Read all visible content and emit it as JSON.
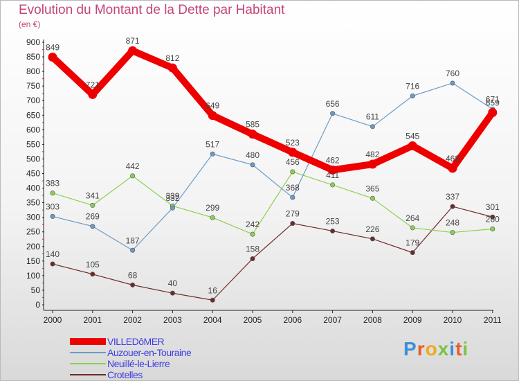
{
  "title": "Evolution du Montant de la Dette par Habitant",
  "subtitle": "(en €)",
  "brand": {
    "text": "Proxiti",
    "colors": [
      "#3a8fd6",
      "#e85c2c",
      "#f0a820",
      "#7cc242",
      "#3a8fd6",
      "#e85c2c",
      "#7cc242"
    ]
  },
  "chart_data": {
    "type": "line",
    "x": [
      "2000",
      "2001",
      "2002",
      "2003",
      "2004",
      "2005",
      "2006",
      "2007",
      "2008",
      "2009",
      "2010",
      "2011"
    ],
    "ylim": [
      0,
      900
    ],
    "yticks": [
      0,
      50,
      100,
      150,
      200,
      250,
      300,
      350,
      400,
      450,
      500,
      550,
      600,
      650,
      700,
      750,
      800,
      850,
      900
    ],
    "grid": false,
    "legend": "bottom-left",
    "series": [
      {
        "name": "VILLEDôMER",
        "color": "#ee0000",
        "values": [
          849,
          721,
          871,
          812,
          649,
          585,
          523,
          462,
          482,
          545,
          468,
          659
        ]
      },
      {
        "name": "Auzouer-en-Touraine",
        "color": "#6b9bc8",
        "values": [
          303,
          269,
          187,
          332,
          517,
          480,
          368,
          656,
          611,
          716,
          760,
          671
        ]
      },
      {
        "name": "Neuillé-le-Lierre",
        "color": "#8cd050",
        "values": [
          383,
          341,
          442,
          339,
          299,
          242,
          456,
          411,
          365,
          264,
          248,
          260
        ]
      },
      {
        "name": "Crotelles",
        "color": "#6e2b2b",
        "values": [
          140,
          105,
          68,
          40,
          16,
          158,
          279,
          253,
          226,
          179,
          337,
          301
        ]
      }
    ]
  }
}
